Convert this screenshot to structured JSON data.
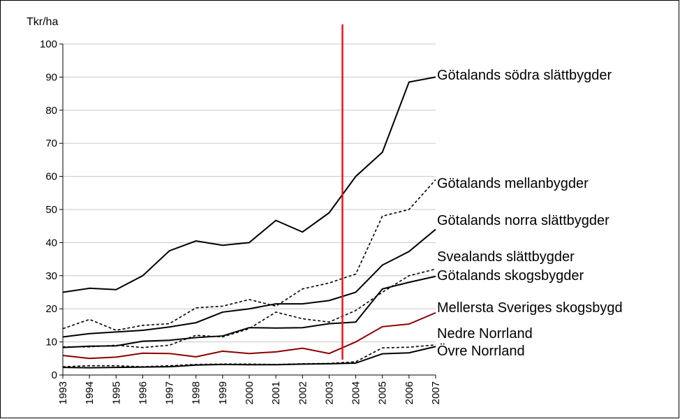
{
  "chart_data": {
    "type": "line",
    "y_label": "Tkr/ha",
    "x": [
      1993,
      1994,
      1995,
      1996,
      1997,
      1998,
      1999,
      2000,
      2001,
      2002,
      2003,
      2004,
      2005,
      2006,
      2007
    ],
    "xlim": [
      1993,
      2007
    ],
    "xticks": [
      1993,
      1994,
      1995,
      1996,
      1997,
      1998,
      1999,
      2000,
      2001,
      2002,
      2003,
      2004,
      2005,
      2006,
      2007
    ],
    "ylim": [
      0,
      100
    ],
    "yticks": [
      0,
      10,
      20,
      30,
      40,
      50,
      60,
      70,
      80,
      90,
      100
    ],
    "grid": true,
    "reference_line": {
      "x": 2003.5,
      "color": "#e8141b"
    },
    "series": [
      {
        "name": "Götalands södra slättbygder",
        "color": "#000000",
        "dashed": false,
        "values": [
          25,
          26.2,
          25.8,
          30,
          37.5,
          40.5,
          39.2,
          40,
          46.7,
          43.2,
          49,
          60,
          67.3,
          88.5,
          90
        ]
      },
      {
        "name": "Götalands mellanbygder",
        "color": "#000000",
        "dashed": true,
        "values": [
          14,
          16.8,
          13.5,
          15,
          15.5,
          20.3,
          20.8,
          22.8,
          20.8,
          26,
          27.8,
          30.5,
          48,
          50,
          59
        ]
      },
      {
        "name": "Götalands norra slättbygder",
        "color": "#000000",
        "dashed": false,
        "values": [
          11.5,
          12.5,
          13,
          13.5,
          14.5,
          15.8,
          19,
          20,
          21.5,
          21.5,
          22.5,
          25,
          33.2,
          37.3,
          44
        ]
      },
      {
        "name": "Svealands slättbygder",
        "color": "#000000",
        "dashed": true,
        "values": [
          8.5,
          8.5,
          9,
          8.3,
          9,
          12,
          11.5,
          14,
          19,
          17,
          16,
          19.5,
          25,
          30,
          32
        ]
      },
      {
        "name": "Götalands skogsbygder",
        "color": "#000000",
        "dashed": false,
        "values": [
          8.3,
          8.7,
          8.8,
          10.2,
          10.5,
          11.3,
          11.8,
          14.3,
          14.2,
          14.3,
          15.5,
          16,
          26,
          28,
          29.8
        ]
      },
      {
        "name": "Mellersta Sveriges skogsbygd",
        "color": "#8b0000",
        "dashed": false,
        "values": [
          5.9,
          5,
          5.4,
          6.6,
          6.5,
          5.5,
          7.2,
          6.5,
          7,
          8.1,
          6.5,
          10,
          14.6,
          15.4,
          18.8
        ]
      },
      {
        "name": "Nedre Norrland",
        "color": "#000000",
        "dashed": true,
        "values": [
          2.5,
          2.8,
          2.8,
          2.5,
          2.8,
          3.2,
          3.3,
          3.3,
          3.2,
          3.4,
          3.5,
          4,
          8.2,
          8.4,
          9.1
        ]
      },
      {
        "name": "Övre Norrland",
        "color": "#000000",
        "dashed": false,
        "values": [
          2.3,
          2.2,
          2.3,
          2.4,
          2.5,
          3,
          3.2,
          3.1,
          3.1,
          3.3,
          3.4,
          3.6,
          6.4,
          6.7,
          8.6
        ]
      }
    ]
  }
}
